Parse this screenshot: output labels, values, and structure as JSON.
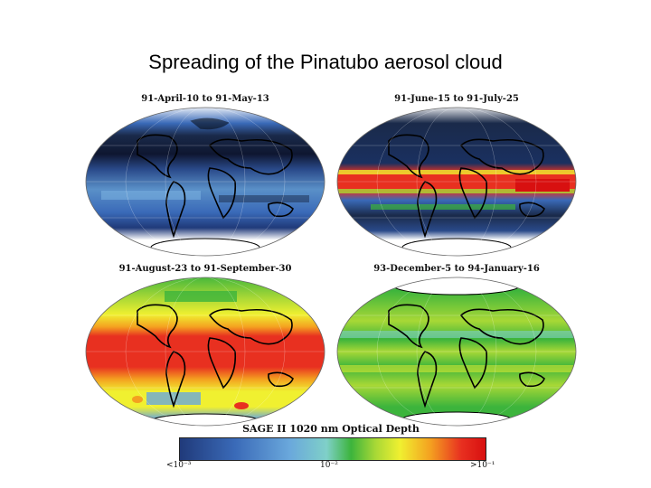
{
  "title": "Spreading of the Pinatubo aerosol cloud",
  "panels": [
    {
      "caption": "91-April-10 to 91-May-13"
    },
    {
      "caption": "91-June-15 to 91-July-25"
    },
    {
      "caption": "91-August-23 to 91-September-30"
    },
    {
      "caption": "93-December-5 to 94-January-16"
    }
  ],
  "colorbar": {
    "title": "SAGE II 1020 nm Optical Depth",
    "tick_min": "<10⁻³",
    "tick_mid": "10⁻²",
    "tick_max": ">10⁻¹"
  },
  "colors": {
    "low": "#203a7a",
    "mid_low": "#6aa8dc",
    "mid": "#3cb43c",
    "mid_high": "#f0f030",
    "high": "#e83020",
    "ice": "#ffffff",
    "coast": "#000000"
  }
}
